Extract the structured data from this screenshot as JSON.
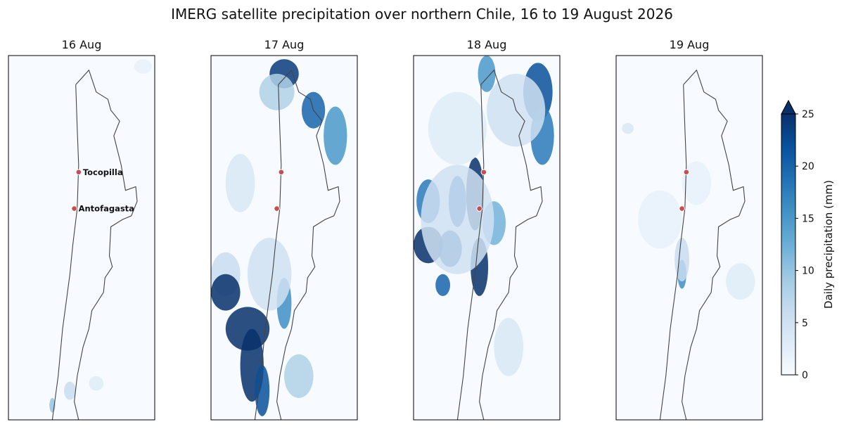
{
  "title": "IMERG satellite precipitation over northern Chile, 16 to 19 August 2026",
  "colorbar": {
    "label": "Daily precipitation (mm)",
    "ticks": [
      0,
      5,
      10,
      15,
      20,
      25
    ],
    "tick_labels": [
      "0",
      "5",
      "10",
      "15",
      "20",
      "25"
    ],
    "extend": "max",
    "colormap": "Blues",
    "colors": [
      "#f7fbff",
      "#deebf7",
      "#c6dbef",
      "#9ecae1",
      "#6baed6",
      "#4292c6",
      "#2171b5",
      "#08519c",
      "#08306b"
    ]
  },
  "city_marker_color": "#c44e52",
  "coastline_color": "#444444",
  "chart_data": {
    "type": "heatmap",
    "variable": "Daily precipitation (mm)",
    "vmin": 0,
    "vmax": 25,
    "panels": [
      {
        "title": "16 Aug",
        "show_city_labels": true,
        "cities": [
          {
            "name": "Tocopilla"
          },
          {
            "name": "Antofagasta"
          }
        ],
        "rain_areas": [
          {
            "lon": 0.42,
            "lat": 0.92,
            "rx": 0.04,
            "ry": 0.025,
            "mm": 6
          },
          {
            "lon": 0.3,
            "lat": 0.96,
            "rx": 0.02,
            "ry": 0.02,
            "mm": 10
          },
          {
            "lon": 0.6,
            "lat": 0.9,
            "rx": 0.05,
            "ry": 0.02,
            "mm": 3
          },
          {
            "lon": 0.92,
            "lat": 0.03,
            "rx": 0.06,
            "ry": 0.02,
            "mm": 2
          }
        ]
      },
      {
        "title": "17 Aug",
        "show_city_labels": false,
        "cities": [
          {
            "name": "Tocopilla"
          },
          {
            "name": "Antofagasta"
          }
        ],
        "rain_areas": [
          {
            "lon": 0.5,
            "lat": 0.05,
            "rx": 0.1,
            "ry": 0.04,
            "mm": 24
          },
          {
            "lon": 0.7,
            "lat": 0.15,
            "rx": 0.08,
            "ry": 0.05,
            "mm": 20
          },
          {
            "lon": 0.85,
            "lat": 0.22,
            "rx": 0.08,
            "ry": 0.08,
            "mm": 15
          },
          {
            "lon": 0.45,
            "lat": 0.1,
            "rx": 0.12,
            "ry": 0.05,
            "mm": 8
          },
          {
            "lon": 0.2,
            "lat": 0.35,
            "rx": 0.1,
            "ry": 0.08,
            "mm": 4
          },
          {
            "lon": 0.1,
            "lat": 0.6,
            "rx": 0.1,
            "ry": 0.06,
            "mm": 6
          },
          {
            "lon": 0.1,
            "lat": 0.65,
            "rx": 0.1,
            "ry": 0.05,
            "mm": 25
          },
          {
            "lon": 0.25,
            "lat": 0.75,
            "rx": 0.15,
            "ry": 0.06,
            "mm": 25
          },
          {
            "lon": 0.28,
            "lat": 0.85,
            "rx": 0.08,
            "ry": 0.1,
            "mm": 25
          },
          {
            "lon": 0.35,
            "lat": 0.92,
            "rx": 0.05,
            "ry": 0.07,
            "mm": 22
          },
          {
            "lon": 0.5,
            "lat": 0.68,
            "rx": 0.05,
            "ry": 0.07,
            "mm": 16
          },
          {
            "lon": 0.6,
            "lat": 0.88,
            "rx": 0.1,
            "ry": 0.06,
            "mm": 8
          },
          {
            "lon": 0.4,
            "lat": 0.6,
            "rx": 0.15,
            "ry": 0.1,
            "mm": 5
          }
        ]
      },
      {
        "title": "18 Aug",
        "show_city_labels": false,
        "cities": [
          {
            "name": "Tocopilla"
          },
          {
            "name": "Antofagasta"
          }
        ],
        "rain_areas": [
          {
            "lon": 0.85,
            "lat": 0.1,
            "rx": 0.1,
            "ry": 0.08,
            "mm": 22
          },
          {
            "lon": 0.88,
            "lat": 0.22,
            "rx": 0.08,
            "ry": 0.08,
            "mm": 18
          },
          {
            "lon": 0.5,
            "lat": 0.05,
            "rx": 0.06,
            "ry": 0.05,
            "mm": 15
          },
          {
            "lon": 0.7,
            "lat": 0.15,
            "rx": 0.2,
            "ry": 0.1,
            "mm": 5
          },
          {
            "lon": 0.1,
            "lat": 0.4,
            "rx": 0.08,
            "ry": 0.06,
            "mm": 18
          },
          {
            "lon": 0.3,
            "lat": 0.4,
            "rx": 0.06,
            "ry": 0.07,
            "mm": 20
          },
          {
            "lon": 0.42,
            "lat": 0.38,
            "rx": 0.06,
            "ry": 0.1,
            "mm": 25
          },
          {
            "lon": 0.1,
            "lat": 0.52,
            "rx": 0.1,
            "ry": 0.05,
            "mm": 25
          },
          {
            "lon": 0.25,
            "lat": 0.53,
            "rx": 0.08,
            "ry": 0.05,
            "mm": 22
          },
          {
            "lon": 0.45,
            "lat": 0.58,
            "rx": 0.06,
            "ry": 0.08,
            "mm": 25
          },
          {
            "lon": 0.55,
            "lat": 0.46,
            "rx": 0.08,
            "ry": 0.06,
            "mm": 12
          },
          {
            "lon": 0.2,
            "lat": 0.63,
            "rx": 0.05,
            "ry": 0.03,
            "mm": 20
          },
          {
            "lon": 0.65,
            "lat": 0.8,
            "rx": 0.1,
            "ry": 0.08,
            "mm": 4
          },
          {
            "lon": 0.3,
            "lat": 0.45,
            "rx": 0.25,
            "ry": 0.15,
            "mm": 5
          },
          {
            "lon": 0.3,
            "lat": 0.2,
            "rx": 0.2,
            "ry": 0.1,
            "mm": 3
          }
        ]
      },
      {
        "title": "19 Aug",
        "show_city_labels": false,
        "cities": [
          {
            "name": "Tocopilla"
          },
          {
            "name": "Antofagasta"
          }
        ],
        "rain_areas": [
          {
            "lon": 0.45,
            "lat": 0.6,
            "rx": 0.03,
            "ry": 0.04,
            "mm": 16
          },
          {
            "lon": 0.45,
            "lat": 0.56,
            "rx": 0.05,
            "ry": 0.06,
            "mm": 6
          },
          {
            "lon": 0.08,
            "lat": 0.2,
            "rx": 0.04,
            "ry": 0.015,
            "mm": 4
          },
          {
            "lon": 0.85,
            "lat": 0.62,
            "rx": 0.1,
            "ry": 0.05,
            "mm": 3
          },
          {
            "lon": 0.3,
            "lat": 0.45,
            "rx": 0.15,
            "ry": 0.08,
            "mm": 2
          },
          {
            "lon": 0.55,
            "lat": 0.35,
            "rx": 0.1,
            "ry": 0.06,
            "mm": 2
          }
        ]
      }
    ]
  }
}
